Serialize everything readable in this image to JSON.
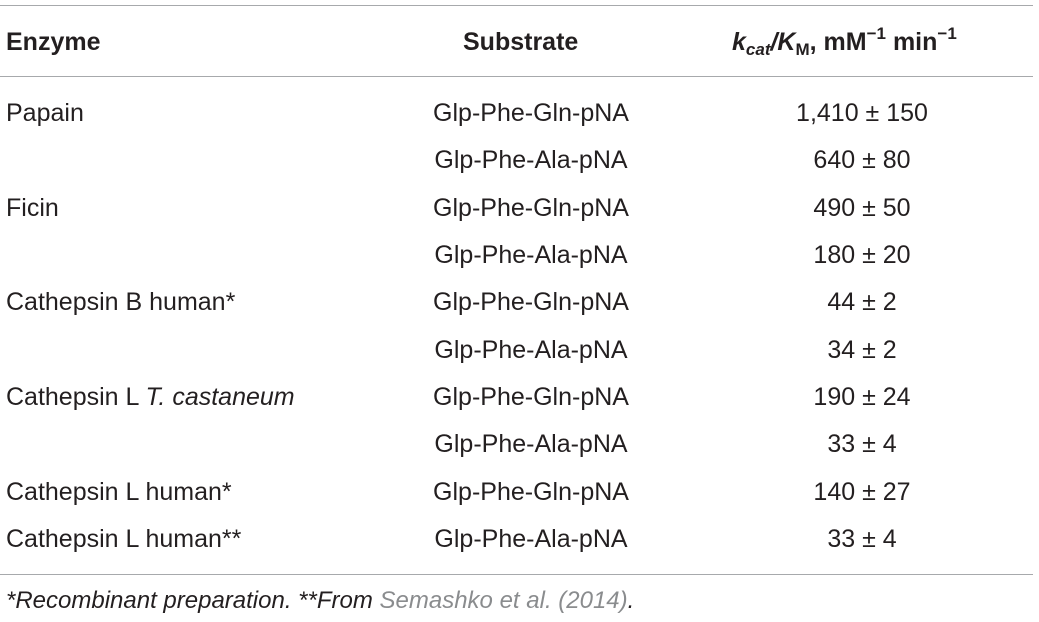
{
  "header": {
    "enzyme": "Enzyme",
    "substrate": "Substrate",
    "kcat_k": "k",
    "kcat_sub": "cat",
    "kcat_slash": "/K",
    "kcat_M": "M",
    "kcat_units_a": ", mM",
    "kcat_exp1": "−1",
    "kcat_units_b": " min",
    "kcat_exp2": "−1"
  },
  "rows": [
    {
      "enzyme": "Papain",
      "substrate": "Glp-Phe-Gln-pNA",
      "value": "1,410 ± 150"
    },
    {
      "enzyme": "",
      "substrate": "Glp-Phe-Ala-pNA",
      "value": "640 ± 80"
    },
    {
      "enzyme": "Ficin",
      "substrate": "Glp-Phe-Gln-pNA",
      "value": "490 ± 50"
    },
    {
      "enzyme": "",
      "substrate": "Glp-Phe-Ala-pNA",
      "value": "180 ± 20"
    },
    {
      "enzyme": "Cathepsin B human*",
      "substrate": "Glp-Phe-Gln-pNA",
      "value": "44 ± 2"
    },
    {
      "enzyme": "",
      "substrate": "Glp-Phe-Ala-pNA",
      "value": "34 ± 2"
    },
    {
      "enzyme": "Cathepsin L ",
      "enzyme_italic": "T. castaneum",
      "substrate": "Glp-Phe-Gln-pNA",
      "value": "190 ± 24"
    },
    {
      "enzyme": "",
      "substrate": "Glp-Phe-Ala-pNA",
      "value": "33 ± 4"
    },
    {
      "enzyme": "Cathepsin L human*",
      "substrate": "Glp-Phe-Gln-pNA",
      "value": "140 ± 27"
    },
    {
      "enzyme": "Cathepsin L human**",
      "substrate": "Glp-Phe-Ala-pNA",
      "value": "33 ± 4"
    }
  ],
  "footnote": {
    "text": "*Recombinant preparation. **From ",
    "citation": "Semashko et al. (2014)",
    "end": "."
  },
  "colors": {
    "text": "#231f20",
    "rule": "#a7a9ac",
    "citation": "#8a8c8e"
  }
}
